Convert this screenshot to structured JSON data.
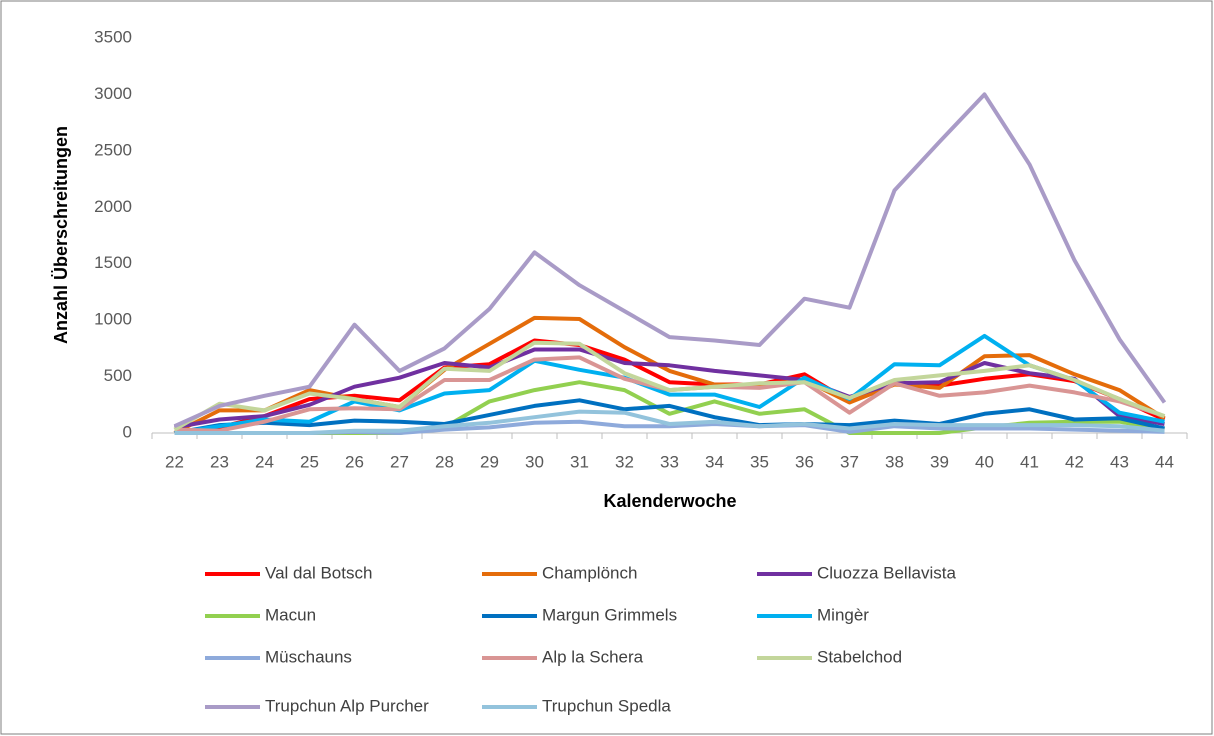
{
  "chart_data": {
    "type": "line",
    "x_label": "Kalenderwoche",
    "y_label": "Anzahl Überschreitungen",
    "categories": [
      "22",
      "23",
      "24",
      "25",
      "26",
      "27",
      "28",
      "29",
      "30",
      "31",
      "32",
      "33",
      "34",
      "35",
      "36",
      "37",
      "38",
      "39",
      "40",
      "41",
      "42",
      "43",
      "44"
    ],
    "ylim": [
      0,
      3500
    ],
    "yticks": [
      0,
      500,
      1000,
      1500,
      2000,
      2500,
      3000,
      3500
    ],
    "grid": false,
    "legend": "bottom",
    "series": [
      {
        "name": "Val dal Botsch",
        "color": "#ff0000",
        "values": [
          0,
          50,
          150,
          300,
          330,
          290,
          580,
          610,
          820,
          780,
          650,
          450,
          430,
          430,
          520,
          280,
          450,
          420,
          480,
          520,
          460,
          300,
          120
        ]
      },
      {
        "name": "Champlönch",
        "color": "#e46c0a",
        "values": [
          0,
          200,
          200,
          380,
          300,
          230,
          560,
          790,
          1020,
          1010,
          760,
          550,
          430,
          420,
          470,
          270,
          430,
          400,
          680,
          690,
          520,
          380,
          130
        ]
      },
      {
        "name": "Cluozza Bellavista",
        "color": "#7030a0",
        "values": [
          50,
          120,
          150,
          250,
          410,
          490,
          620,
          580,
          740,
          740,
          620,
          600,
          550,
          510,
          470,
          320,
          440,
          450,
          620,
          530,
          480,
          150,
          80
        ]
      },
      {
        "name": "Macun",
        "color": "#92d050",
        "values": [
          0,
          0,
          0,
          0,
          0,
          0,
          50,
          280,
          380,
          450,
          380,
          170,
          280,
          170,
          210,
          0,
          0,
          0,
          50,
          90,
          100,
          100,
          30
        ]
      },
      {
        "name": "Margun Grimmels",
        "color": "#0070c0",
        "values": [
          0,
          70,
          90,
          70,
          110,
          100,
          80,
          160,
          240,
          290,
          210,
          240,
          140,
          70,
          80,
          70,
          110,
          80,
          170,
          210,
          120,
          130,
          40
        ]
      },
      {
        "name": "Mingèr",
        "color": "#00b0f0",
        "values": [
          0,
          60,
          120,
          100,
          280,
          200,
          350,
          380,
          640,
          560,
          490,
          340,
          340,
          230,
          490,
          300,
          610,
          600,
          860,
          600,
          470,
          180,
          100
        ]
      },
      {
        "name": "Müschauns",
        "color": "#8eaadb",
        "values": [
          0,
          0,
          0,
          0,
          10,
          0,
          30,
          50,
          90,
          100,
          60,
          60,
          80,
          60,
          70,
          10,
          60,
          40,
          40,
          40,
          30,
          20,
          10
        ]
      },
      {
        "name": "Alp la Schera",
        "color": "#d99594",
        "values": [
          30,
          20,
          100,
          210,
          220,
          210,
          470,
          470,
          650,
          670,
          480,
          380,
          410,
          400,
          450,
          180,
          440,
          330,
          360,
          420,
          360,
          280,
          150
        ]
      },
      {
        "name": "Stabelchod",
        "color": "#c3d69b",
        "values": [
          30,
          260,
          200,
          350,
          300,
          230,
          570,
          550,
          800,
          790,
          530,
          380,
          410,
          440,
          450,
          310,
          470,
          510,
          550,
          600,
          470,
          300,
          150
        ]
      },
      {
        "name": "Trupchun Alp Purcher",
        "color": "#a99bc7",
        "values": [
          60,
          240,
          330,
          410,
          960,
          550,
          750,
          1100,
          1600,
          1310,
          1080,
          850,
          820,
          780,
          1190,
          1110,
          2150,
          2580,
          3000,
          2380,
          1530,
          830,
          270
        ]
      },
      {
        "name": "Trupchun Spedla",
        "color": "#93c3dc",
        "values": [
          0,
          0,
          0,
          0,
          20,
          20,
          60,
          90,
          140,
          190,
          180,
          80,
          100,
          60,
          80,
          40,
          80,
          70,
          70,
          70,
          70,
          60,
          20
        ]
      }
    ]
  }
}
